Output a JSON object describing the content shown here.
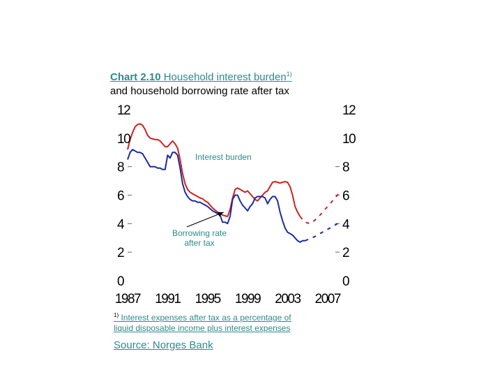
{
  "title": {
    "prefix": "Chart 2.10",
    "main": "Household interest burden",
    "sup": "1)",
    "line2": "and household borrowing rate after tax"
  },
  "chart_data": {
    "type": "line",
    "xlim": [
      1987,
      2008.2
    ],
    "ylim": [
      0,
      12
    ],
    "x_ticks": [
      "1987",
      "1991",
      "1995",
      "1999",
      "2003",
      "2007"
    ],
    "y_ticks_left": [
      "0",
      "2",
      "4",
      "6",
      "8",
      "10",
      "12"
    ],
    "y_ticks_right": [
      "0",
      "2",
      "4",
      "6",
      "8",
      "10",
      "12"
    ],
    "series": [
      {
        "name": "Interest burden",
        "color": "#cc2222",
        "style": "solid",
        "x": [
          1987.0,
          1987.25,
          1987.5,
          1987.75,
          1988.0,
          1988.25,
          1988.5,
          1988.75,
          1989.0,
          1989.25,
          1989.5,
          1989.75,
          1990.0,
          1990.25,
          1990.5,
          1990.75,
          1991.0,
          1991.25,
          1991.5,
          1991.75,
          1992.0,
          1992.25,
          1992.5,
          1992.75,
          1993.0,
          1993.25,
          1993.5,
          1993.75,
          1994.0,
          1994.25,
          1994.5,
          1994.75,
          1995.0,
          1995.5,
          1996.0,
          1996.5,
          1997.0,
          1997.25,
          1997.5,
          1997.75,
          1998.0,
          1998.25,
          1998.5,
          1998.75,
          1999.0,
          1999.25,
          1999.5,
          1999.75,
          2000.0,
          2000.25,
          2000.5,
          2000.75,
          2001.0,
          2001.25,
          2001.5,
          2001.75,
          2002.0,
          2002.25,
          2002.5,
          2002.75,
          2003.0,
          2003.25,
          2003.5,
          2003.75,
          2004.0,
          2004.25
        ],
        "values": [
          9.2,
          9.9,
          10.4,
          10.8,
          10.95,
          11.0,
          10.9,
          10.6,
          10.2,
          10.0,
          9.95,
          9.9,
          9.9,
          9.8,
          9.6,
          9.4,
          9.4,
          9.6,
          9.8,
          9.6,
          9.3,
          8.5,
          7.5,
          6.8,
          6.4,
          6.2,
          6.1,
          6.0,
          5.9,
          5.8,
          5.75,
          5.6,
          5.5,
          5.1,
          4.8,
          4.6,
          4.5,
          5.0,
          5.8,
          6.4,
          6.5,
          6.4,
          6.3,
          6.2,
          6.3,
          6.1,
          5.9,
          5.7,
          5.6,
          5.8,
          6.0,
          6.2,
          6.3,
          6.6,
          6.9,
          6.95,
          6.9,
          6.85,
          6.9,
          6.95,
          6.9,
          6.6,
          6.0,
          5.2,
          4.8,
          4.5
        ]
      },
      {
        "name": "Borrowing rate after tax",
        "color": "#1c2c9c",
        "style": "solid",
        "x": [
          1987.0,
          1987.25,
          1987.5,
          1987.75,
          1988.0,
          1988.25,
          1988.5,
          1988.75,
          1989.0,
          1989.25,
          1989.5,
          1989.75,
          1990.0,
          1990.25,
          1990.5,
          1990.75,
          1991.0,
          1991.25,
          1991.5,
          1991.75,
          1992.0,
          1992.25,
          1992.5,
          1992.75,
          1993.0,
          1993.25,
          1993.5,
          1993.75,
          1994.0,
          1994.25,
          1994.5,
          1994.75,
          1995.0,
          1995.5,
          1996.0,
          1996.25,
          1996.5,
          1996.75,
          1997.0,
          1997.25,
          1997.5,
          1997.75,
          1998.0,
          1998.25,
          1998.5,
          1998.75,
          1999.0,
          1999.25,
          1999.5,
          1999.75,
          2000.0,
          2000.25,
          2000.5,
          2000.75,
          2001.0,
          2001.25,
          2001.5,
          2001.75,
          2002.0,
          2002.25,
          2002.5,
          2002.75,
          2003.0,
          2003.25,
          2003.5,
          2003.75,
          2004.0,
          2004.25,
          2004.5,
          2004.75
        ],
        "values": [
          8.5,
          9.0,
          9.2,
          9.1,
          9.0,
          9.0,
          8.9,
          8.6,
          8.3,
          8.0,
          8.0,
          8.0,
          7.9,
          7.9,
          7.8,
          7.8,
          8.8,
          8.6,
          9.0,
          9.0,
          8.8,
          7.9,
          6.8,
          6.2,
          5.9,
          5.7,
          5.6,
          5.6,
          5.5,
          5.5,
          5.4,
          5.3,
          5.2,
          4.9,
          4.7,
          4.6,
          4.1,
          4.1,
          4.0,
          4.5,
          5.7,
          6.0,
          6.0,
          5.6,
          5.3,
          5.1,
          4.9,
          5.2,
          5.4,
          5.8,
          5.9,
          5.9,
          5.9,
          5.8,
          5.4,
          5.7,
          5.9,
          5.9,
          5.6,
          4.8,
          4.2,
          3.7,
          3.4,
          3.3,
          3.2,
          3.0,
          2.8,
          2.7,
          2.8,
          2.8
        ]
      },
      {
        "name": "Interest burden projection",
        "color": "#cc2222",
        "style": "dashed",
        "x": [
          2004.25,
          2004.75,
          2005.25,
          2005.75,
          2006.25,
          2006.75,
          2007.25,
          2007.75,
          2008.1
        ],
        "values": [
          4.5,
          4.1,
          4.0,
          4.25,
          4.6,
          5.0,
          5.4,
          5.8,
          6.1
        ]
      },
      {
        "name": "Borrowing rate projection",
        "color": "#1c2c9c",
        "style": "dashed",
        "x": [
          2004.75,
          2005.25,
          2005.75,
          2006.25,
          2006.75,
          2007.25,
          2007.75,
          2008.1
        ],
        "values": [
          2.8,
          2.95,
          3.1,
          3.3,
          3.5,
          3.7,
          3.9,
          4.05
        ]
      }
    ],
    "annotations": [
      {
        "text": "Interest burden",
        "series": "Interest burden"
      },
      {
        "text_lines": [
          "Borrowing rate",
          "after tax"
        ],
        "series": "Borrowing rate after tax",
        "arrow_to": [
          1996.6,
          4.8
        ]
      }
    ]
  },
  "footnote": {
    "sup": "1)",
    "line1": " Interest expenses after tax as a percentage of",
    "line2": "liquid disposable income plus interest expenses"
  },
  "source": "Source: Norges Bank"
}
